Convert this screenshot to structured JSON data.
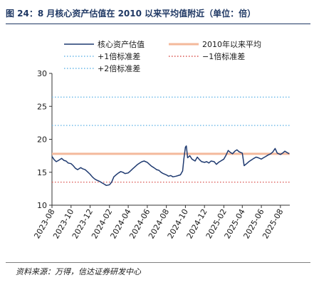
{
  "figure": {
    "title": "图 24：8 月核心资产估值在 2010 以来平均值附近（单位：倍）",
    "source": "资料来源：万得，信达证券研发中心"
  },
  "chart_data": {
    "type": "line",
    "title": "图 24：8 月核心资产估值在 2010 以来平均值附近（单位：倍）",
    "xlabel": "",
    "ylabel": "",
    "ylim": [
      10,
      30
    ],
    "yticks": [
      10,
      15,
      20,
      25,
      30
    ],
    "xlim": [
      "2023-08-01",
      "2025-08-31"
    ],
    "xticks": [
      "2023-08",
      "2023-10",
      "2023-12",
      "2024-02",
      "2024-04",
      "2024-06",
      "2024-08",
      "2024-10",
      "2024-12",
      "2025-02",
      "2025-04",
      "2025-06",
      "2025-08"
    ],
    "grid": false,
    "legend_position": "top",
    "series": [
      {
        "name": "核心资产估值",
        "color": "#1f3a70",
        "style": "solid",
        "points": [
          [
            "2023-08-01",
            17.4
          ],
          [
            "2023-08-08",
            16.9
          ],
          [
            "2023-08-15",
            16.6
          ],
          [
            "2023-08-22",
            16.8
          ],
          [
            "2023-09-01",
            17.1
          ],
          [
            "2023-09-08",
            16.8
          ],
          [
            "2023-09-15",
            16.7
          ],
          [
            "2023-09-22",
            16.4
          ],
          [
            "2023-10-01",
            16.3
          ],
          [
            "2023-10-08",
            16.0
          ],
          [
            "2023-10-15",
            15.6
          ],
          [
            "2023-10-22",
            15.4
          ],
          [
            "2023-11-01",
            15.7
          ],
          [
            "2023-11-08",
            15.5
          ],
          [
            "2023-11-15",
            15.4
          ],
          [
            "2023-11-22",
            15.1
          ],
          [
            "2023-12-01",
            14.7
          ],
          [
            "2023-12-08",
            14.3
          ],
          [
            "2023-12-15",
            14.0
          ],
          [
            "2023-12-22",
            13.8
          ],
          [
            "2024-01-01",
            13.6
          ],
          [
            "2024-01-08",
            13.4
          ],
          [
            "2024-01-15",
            13.2
          ],
          [
            "2024-01-22",
            13.0
          ],
          [
            "2024-02-01",
            13.1
          ],
          [
            "2024-02-08",
            13.5
          ],
          [
            "2024-02-15",
            14.3
          ],
          [
            "2024-02-22",
            14.6
          ],
          [
            "2024-03-01",
            14.9
          ],
          [
            "2024-03-08",
            15.1
          ],
          [
            "2024-03-15",
            15.0
          ],
          [
            "2024-03-22",
            14.8
          ],
          [
            "2024-04-01",
            14.9
          ],
          [
            "2024-04-08",
            15.2
          ],
          [
            "2024-04-15",
            15.5
          ],
          [
            "2024-04-22",
            15.8
          ],
          [
            "2024-05-01",
            16.2
          ],
          [
            "2024-05-08",
            16.4
          ],
          [
            "2024-05-15",
            16.6
          ],
          [
            "2024-05-22",
            16.7
          ],
          [
            "2024-06-01",
            16.5
          ],
          [
            "2024-06-08",
            16.2
          ],
          [
            "2024-06-15",
            15.9
          ],
          [
            "2024-06-22",
            15.7
          ],
          [
            "2024-07-01",
            15.4
          ],
          [
            "2024-07-08",
            15.3
          ],
          [
            "2024-07-15",
            15.0
          ],
          [
            "2024-07-22",
            14.8
          ],
          [
            "2024-08-01",
            14.6
          ],
          [
            "2024-08-08",
            14.4
          ],
          [
            "2024-08-15",
            14.5
          ],
          [
            "2024-08-22",
            14.3
          ],
          [
            "2024-09-01",
            14.4
          ],
          [
            "2024-09-08",
            14.5
          ],
          [
            "2024-09-15",
            14.6
          ],
          [
            "2024-09-22",
            15.2
          ],
          [
            "2024-09-26",
            17.0
          ],
          [
            "2024-10-01",
            18.8
          ],
          [
            "2024-10-04",
            19.0
          ],
          [
            "2024-10-08",
            17.2
          ],
          [
            "2024-10-15",
            17.5
          ],
          [
            "2024-10-22",
            17.0
          ],
          [
            "2024-11-01",
            16.7
          ],
          [
            "2024-11-08",
            17.3
          ],
          [
            "2024-11-15",
            16.9
          ],
          [
            "2024-11-22",
            16.6
          ],
          [
            "2024-12-01",
            16.5
          ],
          [
            "2024-12-08",
            16.6
          ],
          [
            "2024-12-15",
            16.4
          ],
          [
            "2024-12-22",
            16.7
          ],
          [
            "2025-01-01",
            16.6
          ],
          [
            "2025-01-08",
            16.2
          ],
          [
            "2025-01-15",
            16.5
          ],
          [
            "2025-01-22",
            16.7
          ],
          [
            "2025-02-01",
            17.0
          ],
          [
            "2025-02-08",
            17.6
          ],
          [
            "2025-02-15",
            18.3
          ],
          [
            "2025-02-22",
            18.0
          ],
          [
            "2025-03-01",
            17.8
          ],
          [
            "2025-03-08",
            18.2
          ],
          [
            "2025-03-15",
            18.4
          ],
          [
            "2025-03-22",
            18.1
          ],
          [
            "2025-04-01",
            17.9
          ],
          [
            "2025-04-07",
            16.0
          ],
          [
            "2025-04-15",
            16.3
          ],
          [
            "2025-04-22",
            16.6
          ],
          [
            "2025-05-01",
            16.9
          ],
          [
            "2025-05-08",
            17.1
          ],
          [
            "2025-05-15",
            17.3
          ],
          [
            "2025-05-22",
            17.2
          ],
          [
            "2025-06-01",
            17.0
          ],
          [
            "2025-06-08",
            17.2
          ],
          [
            "2025-06-15",
            17.4
          ],
          [
            "2025-06-22",
            17.6
          ],
          [
            "2025-07-01",
            17.8
          ],
          [
            "2025-07-08",
            18.1
          ],
          [
            "2025-07-15",
            18.6
          ],
          [
            "2025-07-22",
            17.9
          ],
          [
            "2025-08-01",
            17.7
          ],
          [
            "2025-08-08",
            17.9
          ],
          [
            "2025-08-15",
            18.2
          ],
          [
            "2025-08-22",
            18.0
          ],
          [
            "2025-08-29",
            17.8
          ]
        ]
      },
      {
        "name": "2010年以来平均",
        "color": "#f4b99b",
        "style": "solid",
        "value": 17.8
      },
      {
        "name": "+1倍标准差",
        "color": "#6ab8e8",
        "style": "dotted",
        "value": 22.1
      },
      {
        "name": "−1倍标准差",
        "color": "#d9534f",
        "style": "dotted",
        "value": 13.5
      },
      {
        "name": "+2倍标准差",
        "color": "#6ab8e8",
        "style": "dotted",
        "value": 26.4
      }
    ]
  }
}
